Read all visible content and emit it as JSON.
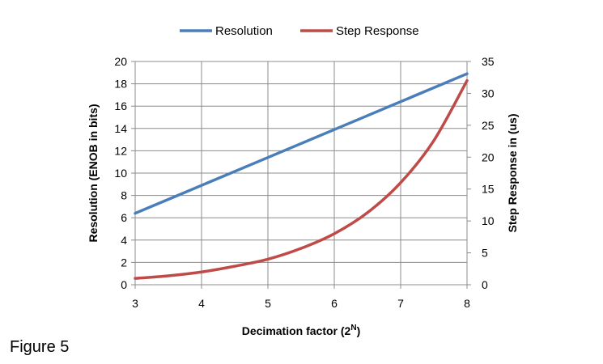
{
  "caption": "Figure 5",
  "chart_data": {
    "type": "line",
    "xlabel": "Decimation factor (2",
    "xlabel_superscript": "N",
    "xlabel_suffix": ")",
    "ylabel_left": "Resolution (ENOB in bits)",
    "ylabel_right": "Step Response in (us)",
    "xlim": [
      3,
      8
    ],
    "ylim_left": [
      0,
      20
    ],
    "ylim_right": [
      0,
      35
    ],
    "x_ticks": [
      3,
      4,
      5,
      6,
      7,
      8
    ],
    "y_left_ticks": [
      0,
      2,
      4,
      6,
      8,
      10,
      12,
      14,
      16,
      18,
      20
    ],
    "y_right_ticks": [
      0,
      5,
      10,
      15,
      20,
      25,
      30,
      35
    ],
    "grid": true,
    "legend_position": "top",
    "series": [
      {
        "name": "Resolution",
        "axis": "left",
        "color": "#4a7ebb",
        "x": [
          3,
          4,
          5,
          6,
          7,
          8
        ],
        "y": [
          6.4,
          8.9,
          11.4,
          13.9,
          16.4,
          18.9
        ]
      },
      {
        "name": "Step Response",
        "axis": "right",
        "color": "#be4b48",
        "x": [
          3,
          3.5,
          4,
          4.5,
          5,
          5.5,
          6,
          6.5,
          7,
          7.5,
          8
        ],
        "y": [
          1.0,
          1.4,
          2.0,
          2.9,
          4.0,
          5.7,
          8.0,
          11.3,
          16.0,
          22.6,
          32.0
        ]
      }
    ]
  }
}
